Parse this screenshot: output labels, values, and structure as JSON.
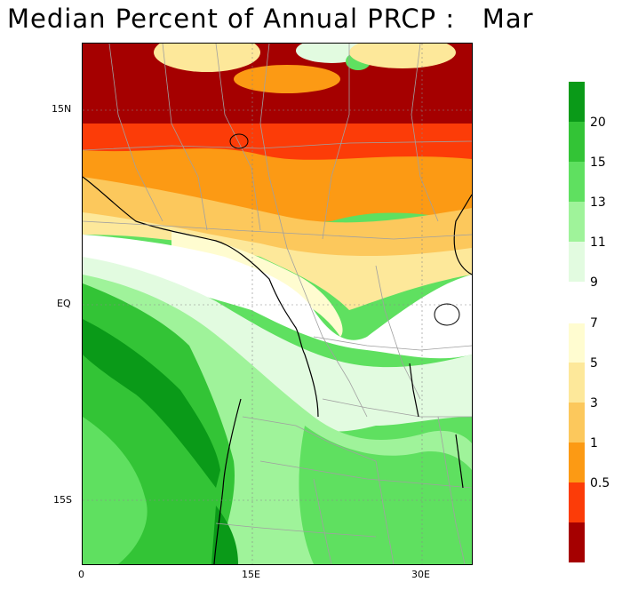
{
  "title": "Median Percent of Annual PRCP :   Mar",
  "axes": {
    "y_ticks": [
      "15N",
      "EQ",
      "15S"
    ],
    "x_ticks": [
      "0",
      "15E",
      "30E"
    ]
  },
  "legend": {
    "labels": [
      "20",
      "15",
      "13",
      "11",
      "9",
      "7",
      "5",
      "3",
      "1",
      "0.5"
    ],
    "colors": [
      "#0a9a18",
      "#33c436",
      "#5fe060",
      "#9ff39a",
      "#e2fbe0",
      "#fffcd0",
      "#fde89a",
      "#fcc85c",
      "#fc9a14",
      "#fc3c08",
      "#a50000"
    ]
  },
  "colors": {
    "dark_red": "#a50000",
    "red": "#fc3c08",
    "orange": "#fc9a14",
    "light_orange": "#fcc85c",
    "yellow": "#fde89a",
    "pale_yellow": "#fffcd0",
    "white": "#ffffff",
    "pale_green": "#e2fbe0",
    "light_green": "#9ff39a",
    "green": "#5fe060",
    "mid_green": "#33c436",
    "dark_green": "#0a9a18",
    "country_borders": "#a0a0a0",
    "coastline": "#000000"
  }
}
